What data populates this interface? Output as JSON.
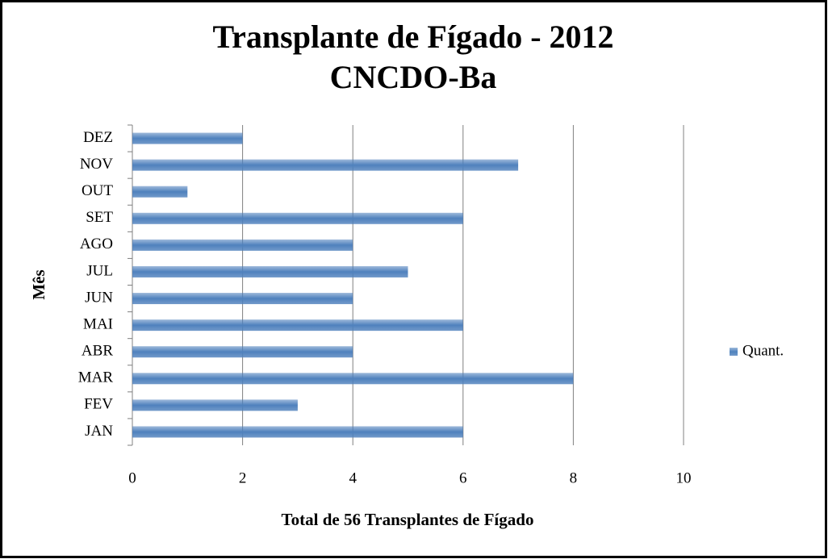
{
  "chart_data": {
    "type": "bar",
    "orientation": "horizontal",
    "title": "Transplante de Fígado - 2012",
    "subtitle": "CNCDO-Ba",
    "x_label": "Total de 56 Transplantes de Fígado",
    "y_label": "Mês",
    "categories": [
      "JAN",
      "FEV",
      "MAR",
      "ABR",
      "MAI",
      "JUN",
      "JUL",
      "AGO",
      "SET",
      "OUT",
      "NOV",
      "DEZ"
    ],
    "series": [
      {
        "name": "Quant.",
        "color": "#4f81bd",
        "values": [
          6,
          3,
          8,
          4,
          6,
          4,
          5,
          4,
          6,
          1,
          7,
          2
        ]
      }
    ],
    "xlim": [
      0,
      10
    ],
    "xticks": [
      0,
      2,
      4,
      6,
      8,
      10
    ],
    "grid": true,
    "legend": "right"
  }
}
